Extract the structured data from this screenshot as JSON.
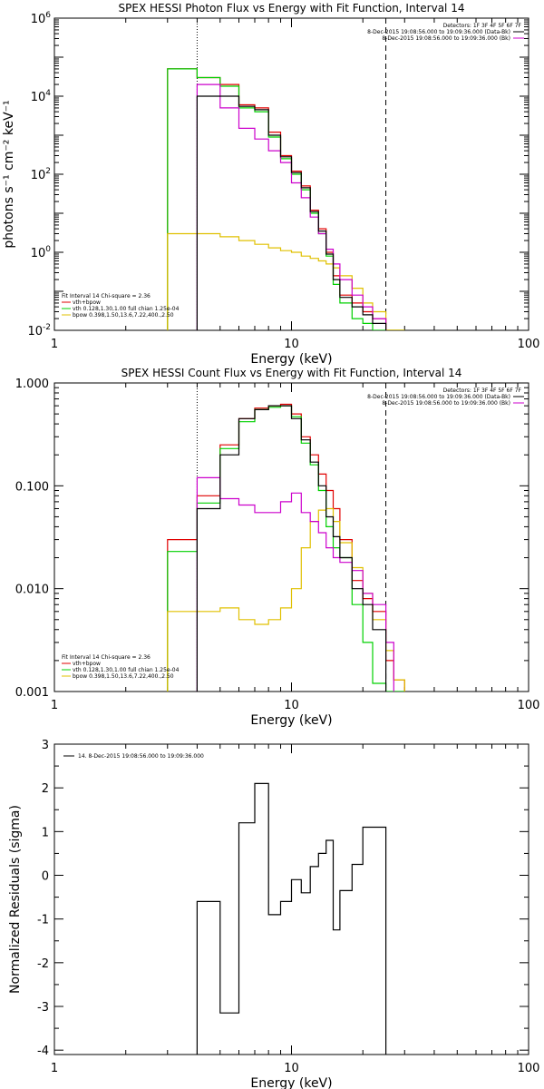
{
  "colors": {
    "data": "#000000",
    "total": "#e00000",
    "vth": "#00d000",
    "bpow": "#e0c000",
    "bkg": "#cc00cc"
  },
  "chart_data": [
    {
      "type": "line",
      "title": "SPEX HESSI Photon Flux vs Energy with Fit Function, Interval 14",
      "xlabel": "Energy (keV)",
      "ylabel": "photons s⁻¹ cm⁻² keV⁻¹",
      "xscale": "log",
      "yscale": "log",
      "xlim": [
        1,
        100
      ],
      "ylim": [
        0.01,
        1000000
      ],
      "xticks": [
        {
          "v": 1,
          "label": "1"
        },
        {
          "v": 10,
          "label": "10"
        },
        {
          "v": 100,
          "label": "100"
        }
      ],
      "yticks": [
        {
          "v": 0.01,
          "b": "10",
          "e": "-2"
        },
        {
          "v": 1,
          "b": "10",
          "e": "0"
        },
        {
          "v": 100,
          "b": "10",
          "e": "2"
        },
        {
          "v": 10000,
          "b": "10",
          "e": "4"
        },
        {
          "v": 1000000,
          "b": "10",
          "e": "6"
        }
      ],
      "vlines": [
        {
          "x": 4.0,
          "style": "dotted"
        },
        {
          "x": 25.0,
          "style": "dashed"
        }
      ],
      "legend_tr": [
        "Detectors: 1F 3F 4F 5F 6F 7F",
        "8-Dec-2015 19:08:56.000 to 19:09:36.000 (Data-Bk)",
        "8-Dec-2015 19:08:56.000 to 19:09:36.000 (Bk)"
      ],
      "legend_bl": [
        "Fit Interval 14   Chi-square = 2.36",
        "vth+bpow",
        "vth 0.128,1.30,1.00  full chian 1.25e-04",
        "bpow 0.398,1.50,13.6,7.22,400.,2.50"
      ],
      "edges": [
        3.0,
        4.0,
        5.0,
        6.0,
        7.0,
        8.0,
        9.0,
        10.0,
        11.0,
        12.0,
        13.0,
        14.0,
        15.0,
        16.0,
        18.0,
        20.0,
        22.0,
        25.0,
        30.0
      ],
      "series": [
        {
          "name": "vth+bpow",
          "color": "#e00000",
          "values": [
            50000,
            30000,
            20000,
            6000,
            5000,
            1200,
            300,
            120,
            50,
            12,
            4,
            1.0,
            0.25,
            0.08,
            0.05,
            0.03,
            0.02,
            0.01
          ]
        },
        {
          "name": "vth 0.128,1.30,1.00  full chian 1.25e-04",
          "color": "#00d000",
          "values": [
            50000,
            30000,
            18000,
            5000,
            4000,
            900,
            250,
            100,
            40,
            10,
            3,
            0.8,
            0.15,
            0.05,
            0.02,
            0.015,
            0.01,
            0.01
          ]
        },
        {
          "name": "bpow 0.398,1.50,13.6,7.22,400.,2.50",
          "color": "#e0c000",
          "values": [
            3,
            3,
            2.5,
            2.0,
            1.6,
            1.3,
            1.1,
            1.0,
            0.8,
            0.7,
            0.6,
            0.5,
            0.4,
            0.25,
            0.12,
            0.05,
            0.03,
            0.01
          ]
        },
        {
          "name": "8-Dec-2015 19:08:56.000 to 19:09:36.000 (Bk)",
          "color": "#cc00cc",
          "values": [
            null,
            20000,
            5000,
            1500,
            800,
            400,
            200,
            60,
            25,
            8,
            3,
            1.2,
            0.5,
            0.2,
            0.08,
            0.04,
            0.02,
            null
          ]
        },
        {
          "name": "8-Dec-2015 19:08:56.000 to 19:09:36.000 (Data-Bk)",
          "color": "#000000",
          "values": [
            null,
            10000,
            10000,
            5500,
            4500,
            1000,
            280,
            110,
            45,
            11,
            3.5,
            0.9,
            0.2,
            0.07,
            0.04,
            0.025,
            0.015,
            null
          ]
        }
      ]
    },
    {
      "type": "line",
      "title": "SPEX HESSI Count Flux vs Energy with Fit Function, Interval 14",
      "xlabel": "Energy (keV)",
      "ylabel": "",
      "xscale": "log",
      "yscale": "log",
      "xlim": [
        1,
        100
      ],
      "ylim": [
        0.001,
        1.0
      ],
      "xticks": [
        {
          "v": 1,
          "label": "1"
        },
        {
          "v": 10,
          "label": "10"
        },
        {
          "v": 100,
          "label": "100"
        }
      ],
      "yticks": [
        {
          "v": 0.001,
          "label": "0.001"
        },
        {
          "v": 0.01,
          "label": "0.010"
        },
        {
          "v": 0.1,
          "label": "0.100"
        },
        {
          "v": 1.0,
          "label": "1.000"
        }
      ],
      "vlines": [
        {
          "x": 4.0,
          "style": "dotted"
        },
        {
          "x": 25.0,
          "style": "dashed"
        }
      ],
      "legend_tr": [
        "Detectors: 1F 3F 4F 5F 6F 7F",
        "8-Dec-2015 19:08:56.000 to 19:09:36.000 (Data-Bk)",
        "8-Dec-2015 19:08:56.000 to 19:09:36.000 (Bk)"
      ],
      "legend_bl": [
        "Fit Interval 14   Chi-square = 2.36",
        "vth+bpow",
        "vth 0.128,1.30,1.00  full chian 1.25e-04",
        "bpow 0.398,1.50,13.6,7.22,400.,2.50"
      ],
      "edges": [
        3.0,
        4.0,
        5.0,
        6.0,
        7.0,
        8.0,
        9.0,
        10.0,
        11.0,
        12.0,
        13.0,
        14.0,
        15.0,
        16.0,
        18.0,
        20.0,
        22.0,
        25.0,
        27.0,
        30.0
      ],
      "series": [
        {
          "name": "vth+bpow",
          "color": "#e00000",
          "values": [
            0.03,
            0.08,
            0.25,
            0.45,
            0.57,
            0.6,
            0.62,
            0.5,
            0.3,
            0.2,
            0.13,
            0.09,
            0.06,
            0.03,
            0.012,
            0.008,
            0.006,
            0.002,
            0.0013
          ]
        },
        {
          "name": "vth 0.128,1.30,1.00  full chian 1.25e-04",
          "color": "#00d000",
          "values": [
            0.023,
            0.068,
            0.23,
            0.42,
            0.55,
            0.58,
            0.6,
            0.47,
            0.26,
            0.16,
            0.09,
            0.04,
            0.025,
            0.02,
            0.007,
            0.003,
            0.0012,
            0.001,
            0.001
          ]
        },
        {
          "name": "bpow 0.398,1.50,13.6,7.22,400.,2.50",
          "color": "#e0c000",
          "values": [
            0.006,
            0.006,
            0.0065,
            0.005,
            0.0045,
            0.005,
            0.0065,
            0.01,
            0.025,
            0.045,
            0.058,
            0.06,
            0.045,
            0.028,
            0.016,
            0.009,
            0.005,
            0.0025,
            0.0013
          ]
        },
        {
          "name": "8-Dec-2015 19:08:56.000 to 19:09:36.000 (Bk)",
          "color": "#cc00cc",
          "values": [
            null,
            0.12,
            0.075,
            0.065,
            0.055,
            0.055,
            0.07,
            0.085,
            0.055,
            0.045,
            0.035,
            0.025,
            0.02,
            0.018,
            0.015,
            0.009,
            0.007,
            0.003,
            null
          ]
        },
        {
          "name": "8-Dec-2015 19:08:56.000 to 19:09:36.000 (Data-Bk)",
          "color": "#000000",
          "values": [
            null,
            0.06,
            0.2,
            0.45,
            0.55,
            0.6,
            0.6,
            0.45,
            0.28,
            0.17,
            0.1,
            0.05,
            0.032,
            0.02,
            0.01,
            0.007,
            0.004,
            null,
            null
          ]
        }
      ]
    },
    {
      "type": "line",
      "title": "",
      "xlabel": "Energy (keV)",
      "ylabel": "Normalized Residuals (sigma)",
      "xscale": "log",
      "yscale": "linear",
      "xlim": [
        1,
        100
      ],
      "ylim": [
        -4.1,
        3.0
      ],
      "xticks": [
        {
          "v": 1,
          "label": "1"
        },
        {
          "v": 10,
          "label": "10"
        },
        {
          "v": 100,
          "label": "100"
        }
      ],
      "yticks": [
        {
          "v": -4,
          "label": "-4"
        },
        {
          "v": -3,
          "label": "-3"
        },
        {
          "v": -2,
          "label": "-2"
        },
        {
          "v": -1,
          "label": "-1"
        },
        {
          "v": 0,
          "label": "0"
        },
        {
          "v": 1,
          "label": "1"
        },
        {
          "v": 2,
          "label": "2"
        },
        {
          "v": 3,
          "label": "3"
        }
      ],
      "legend_tl": [
        "14.  8-Dec-2015 19:08:56.000 to 19:09:36.000"
      ],
      "edges": [
        4.0,
        5.0,
        6.0,
        7.0,
        8.0,
        9.0,
        10.0,
        11.0,
        12.0,
        13.0,
        14.0,
        15.0,
        16.0,
        18.0,
        20.0,
        22.0,
        25.0
      ],
      "series": [
        {
          "name": "14.  8-Dec-2015 19:08:56.000 to 19:09:36.000",
          "color": "#000000",
          "values": [
            -0.6,
            -3.15,
            1.2,
            2.1,
            -0.9,
            -0.6,
            -0.1,
            -0.4,
            0.2,
            0.5,
            0.8,
            -1.25,
            -0.35,
            0.25,
            1.1,
            1.1
          ]
        }
      ]
    }
  ]
}
